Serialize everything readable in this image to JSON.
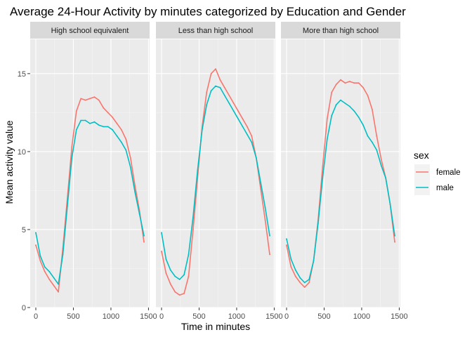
{
  "chart_data": {
    "type": "line",
    "title": "Average 24-Hour Activity by minutes categorized by Education and Gender",
    "xlabel": "Time in minutes",
    "ylabel": "Mean activity value",
    "xlim": [
      0,
      1440
    ],
    "ylim": [
      0,
      17.2
    ],
    "x_ticks": [
      0,
      500,
      1000,
      1500
    ],
    "x_tick_labels": [
      "0",
      "500",
      "1000",
      "1500"
    ],
    "y_ticks": [
      0,
      5,
      10,
      15
    ],
    "y_tick_labels": [
      "0",
      "5",
      "10",
      "15"
    ],
    "grid": true,
    "legend": {
      "title": "sex",
      "position": "right",
      "entries": [
        {
          "label": "female",
          "color": "#F8766D"
        },
        {
          "label": "male",
          "color": "#00BFC4"
        }
      ]
    },
    "x": [
      0,
      60,
      120,
      180,
      240,
      300,
      360,
      420,
      480,
      540,
      600,
      660,
      720,
      780,
      840,
      900,
      960,
      1020,
      1080,
      1140,
      1200,
      1260,
      1320,
      1380,
      1440
    ],
    "panels": [
      {
        "label": "High school equivalent",
        "series": [
          {
            "name": "female",
            "color": "#F8766D",
            "values": [
              4.0,
              3.0,
              2.3,
              1.8,
              1.4,
              1.0,
              3.8,
              7.0,
              10.3,
              12.6,
              13.4,
              13.3,
              13.4,
              13.5,
              13.3,
              12.8,
              12.5,
              12.2,
              11.8,
              11.4,
              10.8,
              9.6,
              7.8,
              6.2,
              4.2
            ]
          },
          {
            "name": "male",
            "color": "#00BFC4",
            "values": [
              4.8,
              3.3,
              2.6,
              2.3,
              1.9,
              1.5,
              3.4,
              6.5,
              9.6,
              11.4,
              12.0,
              12.0,
              11.8,
              11.9,
              11.7,
              11.6,
              11.6,
              11.4,
              11.0,
              10.6,
              10.1,
              9.0,
              7.4,
              6.0,
              4.6
            ]
          }
        ]
      },
      {
        "label": "Less than high school",
        "series": [
          {
            "name": "female",
            "color": "#F8766D",
            "values": [
              3.6,
              2.2,
              1.5,
              1.0,
              0.8,
              0.9,
              2.0,
              5.0,
              8.3,
              11.6,
              13.8,
              15.0,
              15.3,
              14.6,
              14.1,
              13.6,
              13.1,
              12.6,
              12.1,
              11.6,
              11.0,
              9.6,
              7.6,
              5.6,
              3.4
            ]
          },
          {
            "name": "male",
            "color": "#00BFC4",
            "values": [
              4.8,
              3.1,
              2.4,
              2.0,
              1.8,
              2.1,
              3.4,
              5.8,
              8.8,
              11.4,
              13.0,
              13.9,
              14.2,
              14.1,
              13.6,
              13.1,
              12.6,
              12.1,
              11.6,
              11.1,
              10.6,
              9.6,
              8.0,
              6.4,
              4.6
            ]
          }
        ]
      },
      {
        "label": "More than high school",
        "series": [
          {
            "name": "female",
            "color": "#F8766D",
            "values": [
              4.0,
              2.6,
              2.0,
              1.6,
              1.3,
              1.6,
              3.0,
              5.6,
              9.0,
              12.1,
              13.8,
              14.3,
              14.6,
              14.4,
              14.5,
              14.4,
              14.4,
              14.1,
              13.6,
              12.7,
              11.0,
              9.5,
              8.3,
              6.6,
              4.2
            ]
          },
          {
            "name": "male",
            "color": "#00BFC4",
            "values": [
              4.4,
              3.1,
              2.4,
              1.9,
              1.6,
              1.8,
              3.0,
              5.4,
              8.3,
              10.8,
              12.3,
              13.0,
              13.3,
              13.1,
              12.9,
              12.6,
              12.2,
              11.7,
              11.0,
              10.6,
              10.1,
              9.1,
              8.3,
              6.6,
              4.6
            ]
          }
        ]
      }
    ]
  }
}
